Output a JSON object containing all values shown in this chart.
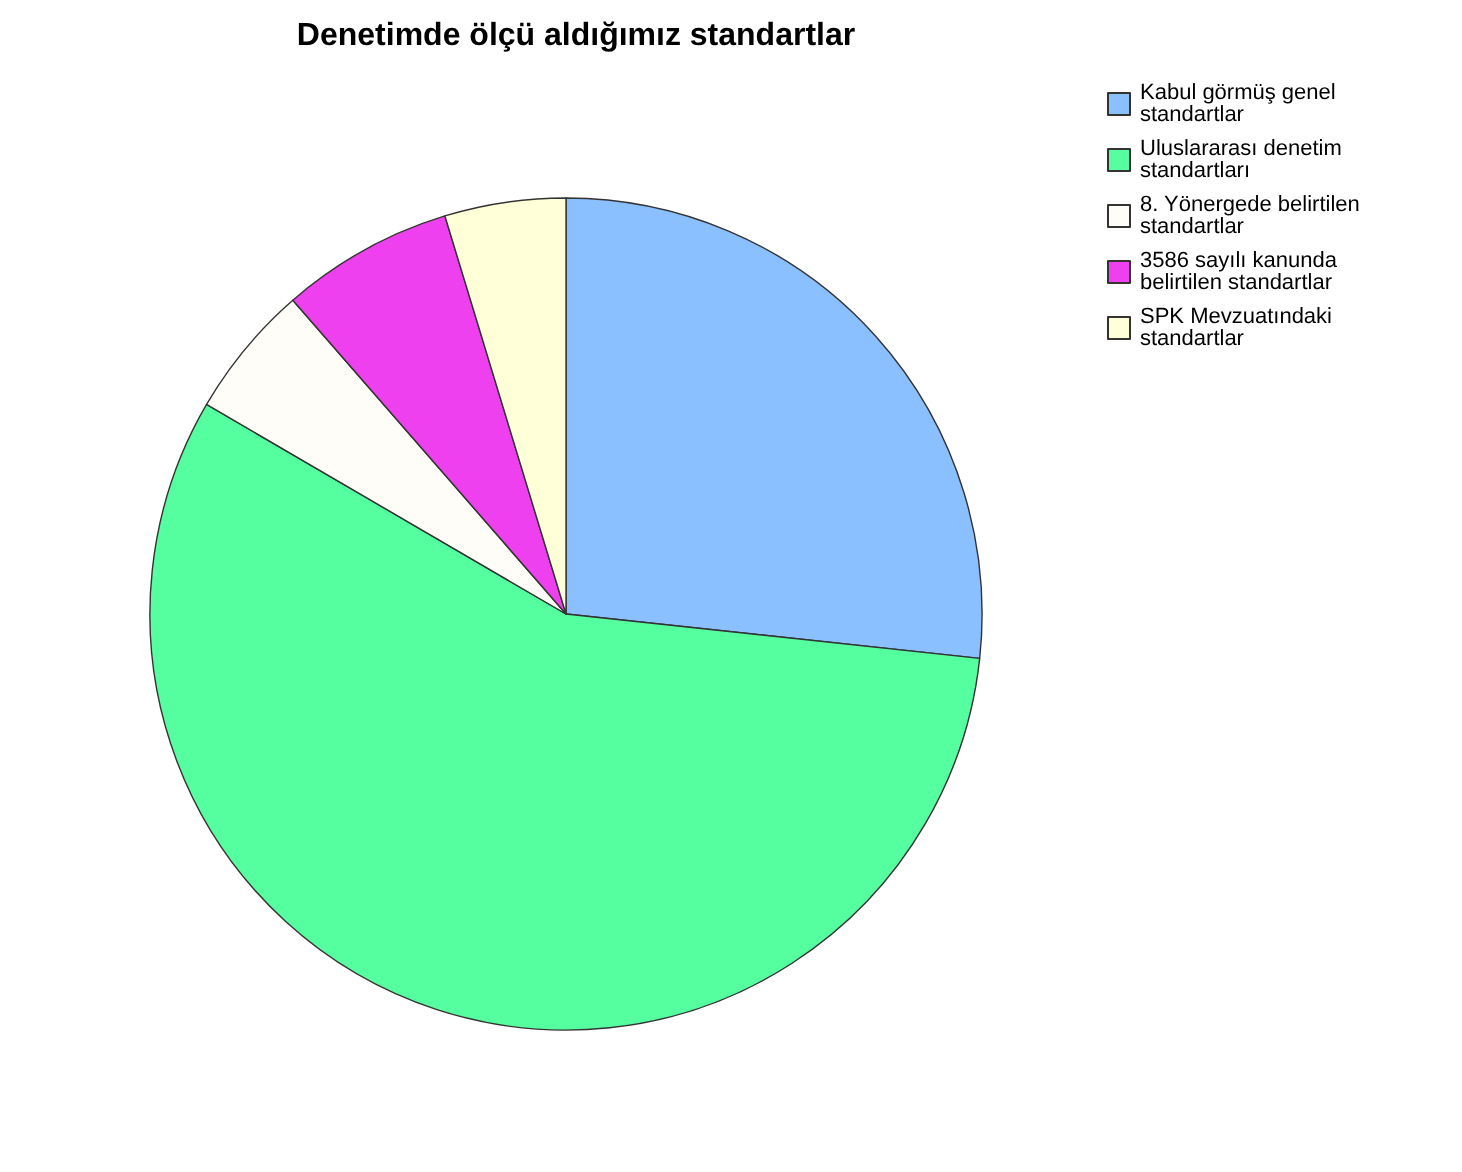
{
  "chart_data": {
    "type": "pie",
    "title": "Denetimde ölçü aldığımız standartlar",
    "categories": [
      "Kabul görmüş genel standartlar",
      "Uluslararası denetim standartları",
      "8. Yönergede belirtilen standartlar",
      "3586 sayılı kanunda belirtilen standartlar",
      "SPK Mevzuatındaki standartlar"
    ],
    "values": [
      26.7,
      56.7,
      5.2,
      6.7,
      4.7
    ],
    "colors": [
      "#8ac0ff",
      "#55ff9f",
      "#fffdf8",
      "#ee40ee",
      "#ffffd8"
    ],
    "legend": "top right"
  }
}
